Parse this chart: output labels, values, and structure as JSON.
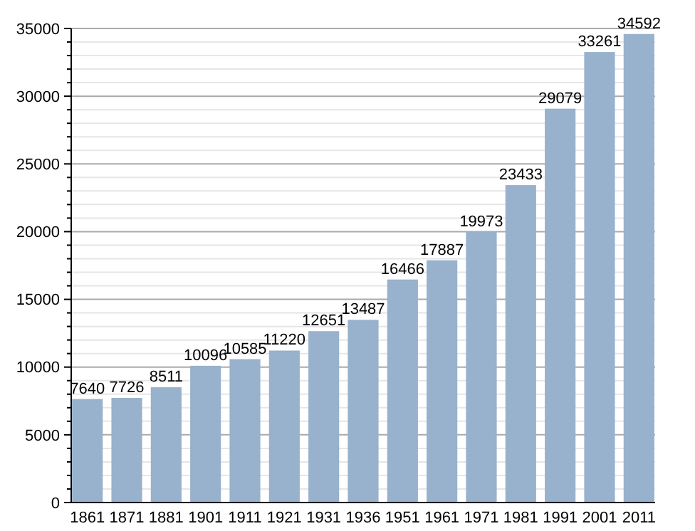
{
  "chart_data": {
    "type": "bar",
    "categories": [
      "1861",
      "1871",
      "1881",
      "1901",
      "1911",
      "1921",
      "1931",
      "1936",
      "1951",
      "1961",
      "1971",
      "1981",
      "1991",
      "2001",
      "2011"
    ],
    "values": [
      7640,
      7726,
      8511,
      10096,
      10585,
      11220,
      12651,
      13487,
      16466,
      17887,
      19973,
      23433,
      29079,
      33261,
      34592
    ],
    "color": "#98b1cc",
    "ylim": [
      0,
      35000
    ],
    "yticks": [
      0,
      {
        "value": 1000,
        "label": null
      },
      {
        "value": 2000,
        "label": null
      },
      {
        "value": 3000,
        "label": null
      },
      {
        "value": 4000,
        "label": null
      },
      5000,
      {
        "value": 6000,
        "label": null
      },
      {
        "value": 7000,
        "label": null
      },
      {
        "value": 8000,
        "label": null
      },
      {
        "value": 9000,
        "label": null
      },
      10000,
      {
        "value": 11000,
        "label": null
      },
      {
        "value": 12000,
        "label": null
      },
      {
        "value": 13000,
        "label": null
      },
      {
        "value": 14000,
        "label": null
      },
      15000,
      {
        "value": 16000,
        "label": null
      },
      {
        "value": 17000,
        "label": null
      },
      {
        "value": 18000,
        "label": null
      },
      {
        "value": 19000,
        "label": null
      },
      20000,
      {
        "value": 21000,
        "label": null
      },
      {
        "value": 22000,
        "label": null
      },
      {
        "value": 23000,
        "label": null
      },
      {
        "value": 24000,
        "label": null
      },
      25000,
      {
        "value": 26000,
        "label": null
      },
      {
        "value": 27000,
        "label": null
      },
      {
        "value": 28000,
        "label": null
      },
      {
        "value": 29000,
        "label": null
      },
      30000,
      {
        "value": 31000,
        "label": null
      },
      {
        "value": 32000,
        "label": null
      },
      {
        "value": 33000,
        "label": null
      },
      {
        "value": 34000,
        "label": null
      },
      35000
    ],
    "grid": "y",
    "data_labels": true
  }
}
